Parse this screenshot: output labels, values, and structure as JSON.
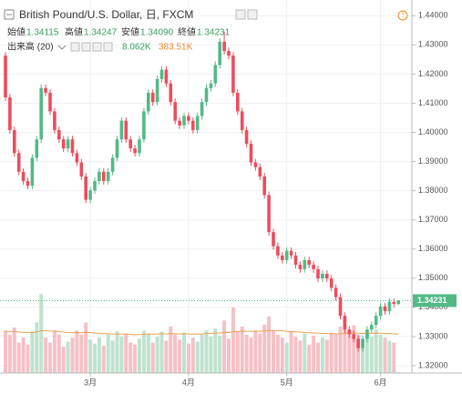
{
  "chart_data": {
    "type": "candlestick",
    "legend": {
      "symbol": "British Pound/U.S. Dollar, 日, FXCM",
      "open_label": "始値",
      "open": {
        "value": 1.34115,
        "label": "1.34115"
      },
      "high_label": "高値",
      "high": {
        "value": 1.34247,
        "label": "1.34247"
      },
      "low_label": "安値",
      "low": {
        "value": 1.3409,
        "label": "1.34090"
      },
      "close_label": "終値",
      "close": {
        "value": 1.34231,
        "label": "1.34231"
      },
      "volume_label": "出来高 (20)",
      "volume": {
        "value": 8.062,
        "label": "8.062K"
      },
      "volume_ma": {
        "value": 383.51,
        "label": "383.51K"
      }
    },
    "last_price": {
      "value": 1.34231,
      "label": "1.34231"
    },
    "categories": [
      null,
      null,
      null,
      null,
      null,
      null,
      null,
      null,
      null,
      null,
      null,
      null,
      null,
      null,
      null,
      null,
      null,
      null,
      null,
      "3月",
      null,
      null,
      null,
      null,
      null,
      null,
      null,
      null,
      null,
      null,
      null,
      null,
      null,
      null,
      null,
      null,
      null,
      null,
      null,
      null,
      null,
      "4月",
      null,
      null,
      null,
      null,
      null,
      null,
      null,
      null,
      null,
      null,
      null,
      null,
      null,
      null,
      null,
      null,
      null,
      null,
      null,
      null,
      null,
      "5月",
      null,
      null,
      null,
      null,
      null,
      null,
      null,
      null,
      null,
      null,
      null,
      null,
      null,
      null,
      null,
      null,
      null,
      null,
      null,
      null,
      "6月",
      null,
      null,
      null,
      null
    ],
    "open": [
      1.4263,
      1.412,
      1.4008,
      1.3929,
      1.3865,
      1.3833,
      1.3817,
      1.3913,
      1.3976,
      1.4152,
      1.4136,
      1.4072,
      1.4008,
      1.3976,
      1.3945,
      1.3976,
      1.3929,
      1.3897,
      1.3849,
      1.3769,
      1.3801,
      1.3833,
      1.3865,
      1.3833,
      1.3865,
      1.3913,
      1.3976,
      1.404,
      1.3976,
      1.3945,
      1.3929,
      1.3976,
      1.4072,
      1.4136,
      1.4104,
      1.4183,
      1.4215,
      1.4168,
      1.4104,
      1.404,
      1.4024,
      1.4056,
      1.404,
      1.4008,
      1.4056,
      1.4104,
      1.4152,
      1.4168,
      1.4231,
      1.4311,
      1.4279,
      1.4263,
      1.4136,
      1.4072,
      1.4008,
      1.3961,
      1.3897,
      1.3881,
      1.3849,
      1.3785,
      1.3658,
      1.361,
      1.3578,
      1.3562,
      1.3594,
      1.3578,
      1.3546,
      1.3531,
      1.3562,
      1.3546,
      1.3531,
      1.3499,
      1.3515,
      1.3499,
      1.3467,
      1.3435,
      1.3371,
      1.3324,
      1.3308,
      1.3292,
      1.326,
      1.3292,
      1.3324,
      1.334,
      1.3371,
      1.3403,
      1.3387,
      1.3419,
      1.34115
    ],
    "high": [
      1.4275,
      1.4132,
      1.402,
      1.3941,
      1.3877,
      1.3845,
      1.3925,
      1.3988,
      1.4164,
      1.4164,
      1.4148,
      1.4084,
      1.402,
      1.3988,
      1.3988,
      1.3988,
      1.3941,
      1.3909,
      1.3861,
      1.3813,
      1.3845,
      1.3877,
      1.3877,
      1.3877,
      1.3925,
      1.3988,
      1.4052,
      1.4052,
      1.3988,
      1.3957,
      1.3988,
      1.4084,
      1.4148,
      1.4148,
      1.4195,
      1.4227,
      1.4227,
      1.418,
      1.4116,
      1.4052,
      1.4068,
      1.4068,
      1.4052,
      1.4068,
      1.4116,
      1.4164,
      1.418,
      1.4243,
      1.4323,
      1.4345,
      1.4291,
      1.4275,
      1.4148,
      1.4084,
      1.402,
      1.3973,
      1.3909,
      1.3893,
      1.3861,
      1.3797,
      1.367,
      1.3622,
      1.359,
      1.3606,
      1.3606,
      1.359,
      1.3558,
      1.3574,
      1.3574,
      1.3558,
      1.3543,
      1.3527,
      1.3527,
      1.3511,
      1.3479,
      1.3447,
      1.3383,
      1.3336,
      1.332,
      1.3304,
      1.3304,
      1.3336,
      1.3352,
      1.3383,
      1.3415,
      1.3415,
      1.3431,
      1.3431,
      1.34247
    ],
    "low": [
      1.4108,
      1.3996,
      1.3917,
      1.3853,
      1.3821,
      1.3805,
      1.3805,
      1.3901,
      1.3964,
      1.4124,
      1.406,
      1.3996,
      1.3964,
      1.3933,
      1.3933,
      1.3917,
      1.3885,
      1.3837,
      1.3757,
      1.3757,
      1.3789,
      1.3821,
      1.3821,
      1.3821,
      1.3853,
      1.3901,
      1.3964,
      1.3964,
      1.3933,
      1.3917,
      1.3917,
      1.3964,
      1.406,
      1.4092,
      1.4092,
      1.4171,
      1.4156,
      1.4092,
      1.4028,
      1.4012,
      1.4012,
      1.4028,
      1.3996,
      1.3996,
      1.4044,
      1.4092,
      1.414,
      1.4156,
      1.4219,
      1.4267,
      1.4251,
      1.4124,
      1.406,
      1.3996,
      1.3949,
      1.3885,
      1.3869,
      1.3837,
      1.3773,
      1.3646,
      1.3598,
      1.3566,
      1.355,
      1.355,
      1.3566,
      1.3534,
      1.3519,
      1.3519,
      1.3534,
      1.3519,
      1.3487,
      1.3487,
      1.3487,
      1.3455,
      1.3423,
      1.3359,
      1.3312,
      1.3296,
      1.328,
      1.3248,
      1.3248,
      1.328,
      1.3312,
      1.3328,
      1.3359,
      1.3375,
      1.3375,
      1.34,
      1.3409
    ],
    "close": [
      1.412,
      1.4008,
      1.3929,
      1.3865,
      1.3833,
      1.3817,
      1.3913,
      1.3976,
      1.4152,
      1.4136,
      1.4072,
      1.4008,
      1.3976,
      1.3945,
      1.3976,
      1.3929,
      1.3897,
      1.3849,
      1.3769,
      1.3801,
      1.3833,
      1.3865,
      1.3833,
      1.3865,
      1.3913,
      1.3976,
      1.404,
      1.3976,
      1.3945,
      1.3929,
      1.3976,
      1.4072,
      1.4136,
      1.4104,
      1.4183,
      1.4215,
      1.4168,
      1.4104,
      1.404,
      1.4024,
      1.4056,
      1.404,
      1.4008,
      1.4056,
      1.4104,
      1.4152,
      1.4168,
      1.4231,
      1.4311,
      1.4279,
      1.4263,
      1.4136,
      1.4072,
      1.4008,
      1.3961,
      1.3897,
      1.3881,
      1.3849,
      1.3785,
      1.3658,
      1.361,
      1.3578,
      1.3562,
      1.3594,
      1.3578,
      1.3546,
      1.3531,
      1.3562,
      1.3546,
      1.3531,
      1.3499,
      1.3515,
      1.3499,
      1.3467,
      1.3435,
      1.3371,
      1.3324,
      1.3308,
      1.3292,
      1.326,
      1.3292,
      1.3324,
      1.334,
      1.3371,
      1.3403,
      1.3387,
      1.3419,
      1.3412,
      1.34231
    ],
    "volume": {
      "axis": "y2",
      "values": [
        420,
        380,
        450,
        300,
        350,
        280,
        410,
        500,
        780,
        350,
        300,
        420,
        380,
        260,
        310,
        350,
        420,
        380,
        500,
        330,
        290,
        350,
        270,
        380,
        320,
        410,
        360,
        390,
        300,
        280,
        340,
        420,
        380,
        300,
        360,
        410,
        320,
        460,
        380,
        330,
        400,
        290,
        350,
        310,
        380,
        420,
        360,
        440,
        370,
        520,
        340,
        650,
        410,
        460,
        380,
        350,
        420,
        390,
        480,
        560,
        420,
        380,
        350,
        300,
        410,
        360,
        320,
        390,
        280,
        370,
        300,
        350,
        330,
        400,
        380,
        460,
        540,
        420,
        470,
        380,
        340,
        400,
        360,
        430,
        380,
        350,
        320,
        300,
        8.062
      ]
    },
    "volume_ma": {
      "axis": "y2",
      "color": "#f0a050",
      "values": [
        410,
        408,
        412,
        405,
        402,
        398,
        400,
        405,
        420,
        418,
        415,
        414,
        410,
        405,
        400,
        398,
        400,
        398,
        402,
        400,
        396,
        394,
        390,
        388,
        385,
        386,
        384,
        386,
        382,
        378,
        380,
        384,
        386,
        384,
        385,
        388,
        386,
        390,
        388,
        386,
        388,
        386,
        384,
        385,
        386,
        390,
        392,
        395,
        396,
        402,
        400,
        410,
        412,
        414,
        413,
        412,
        414,
        413,
        416,
        420,
        420,
        418,
        416,
        412,
        410,
        408,
        404,
        402,
        398,
        396,
        394,
        392,
        390,
        388,
        386,
        388,
        392,
        394,
        396,
        394,
        392,
        394,
        393,
        395,
        394,
        392,
        390,
        388,
        383.51
      ]
    },
    "up_color": "#53b987",
    "down_color": "#eb4d5c",
    "volume_up_color": "#bfe3cf",
    "volume_down_color": "#f5c1c6",
    "ylim": [
      1.3175,
      1.4454
    ],
    "y2lim": [
      0,
      900
    ],
    "yticks": [
      {
        "value": 1.44,
        "label": "1.44000"
      },
      {
        "value": 1.43,
        "label": "1.43000"
      },
      {
        "value": 1.42,
        "label": "1.42000"
      },
      {
        "value": 1.41,
        "label": "1.41000"
      },
      {
        "value": 1.4,
        "label": "1.40000"
      },
      {
        "value": 1.39,
        "label": "1.39000"
      },
      {
        "value": 1.38,
        "label": "1.38000"
      },
      {
        "value": 1.37,
        "label": "1.37000"
      },
      {
        "value": 1.36,
        "label": "1.36000"
      },
      {
        "value": 1.35,
        "label": "1.35000"
      },
      {
        "value": 1.34,
        "label": "1.34000"
      },
      {
        "value": 1.33,
        "label": "1.33000"
      },
      {
        "value": 1.32,
        "label": "1.32000"
      }
    ],
    "grid": true
  }
}
